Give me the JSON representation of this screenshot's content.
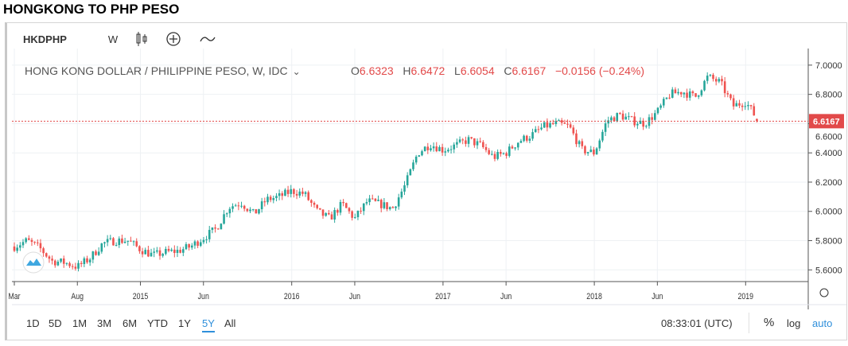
{
  "page_title": "HONGKONG TO PHP PESO",
  "toolbar": {
    "symbol": "HKDPHP",
    "interval": "W",
    "icons": [
      "candlestick-icon",
      "add-compare-icon",
      "indicators-icon"
    ]
  },
  "legend": {
    "name": "HONG KONG DOLLAR / PHILIPPINE PESO, W, IDC",
    "o_label": "O",
    "o": "6.6323",
    "h_label": "H",
    "h": "6.6472",
    "l_label": "L",
    "l": "6.6054",
    "c_label": "C",
    "c": "6.6167",
    "change": "−0.0156 (−0.24%)"
  },
  "colors": {
    "up": "#26a69a",
    "down": "#ef5350",
    "price_line": "#e24a4a",
    "accent": "#2f8fdb"
  },
  "chart_data": {
    "type": "candlestick",
    "title": "HONG KONG DOLLAR / PHILIPPINE PESO, W, IDC",
    "ylim": [
      5.52,
      7.07
    ],
    "y_ticks": [
      "7.0000",
      "6.8000",
      "6.6000",
      "6.4000",
      "6.2000",
      "6.0000",
      "5.8000",
      "5.6000"
    ],
    "y_tick_values": [
      7.0,
      6.8,
      6.6,
      6.4,
      6.2,
      6.0,
      5.8,
      5.6
    ],
    "x_ticks": [
      "Mar",
      "Aug",
      "2015",
      "Jun",
      "2016",
      "Jun",
      "2017",
      "Jun",
      "2018",
      "Jun",
      "2019"
    ],
    "x_tick_month_index": [
      0,
      5,
      10,
      15,
      22,
      27,
      34,
      39,
      46,
      51,
      58
    ],
    "monthly_close_approx": [
      5.76,
      5.8,
      5.75,
      5.66,
      5.65,
      5.62,
      5.68,
      5.78,
      5.8,
      5.8,
      5.74,
      5.7,
      5.72,
      5.73,
      5.76,
      5.82,
      5.88,
      6.03,
      6.06,
      5.98,
      6.08,
      6.1,
      6.14,
      6.12,
      6.0,
      5.95,
      6.05,
      5.95,
      6.07,
      6.05,
      6.02,
      6.18,
      6.4,
      6.46,
      6.42,
      6.45,
      6.49,
      6.45,
      6.37,
      6.4,
      6.48,
      6.52,
      6.58,
      6.6,
      6.58,
      6.42,
      6.4,
      6.62,
      6.66,
      6.62,
      6.6,
      6.68,
      6.8,
      6.82,
      6.78,
      6.92,
      6.88,
      6.72,
      6.75,
      6.62
    ],
    "last_price": "6.6167"
  },
  "bottom": {
    "ranges": [
      "1D",
      "5D",
      "1M",
      "3M",
      "6M",
      "YTD",
      "1Y",
      "5Y",
      "All"
    ],
    "active": "5Y",
    "time": "08:33:01 (UTC)",
    "percent": "%",
    "log": "log",
    "auto": "auto"
  }
}
